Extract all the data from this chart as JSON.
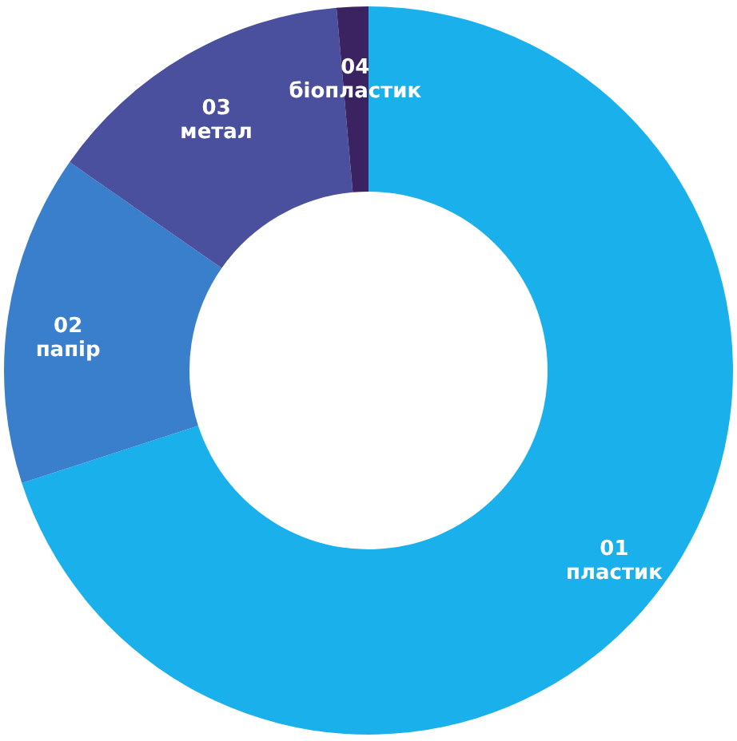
{
  "chart_data": {
    "type": "donut",
    "categories": [
      "01\nпластик",
      "02\nпапір",
      "03\nметал",
      "04\nбіопластик"
    ],
    "values": [
      70,
      14.7,
      13.9,
      1.4
    ],
    "colors": [
      "#1ab0ec",
      "#3a7fcc",
      "#4a4f9e",
      "#3a2360"
    ]
  }
}
